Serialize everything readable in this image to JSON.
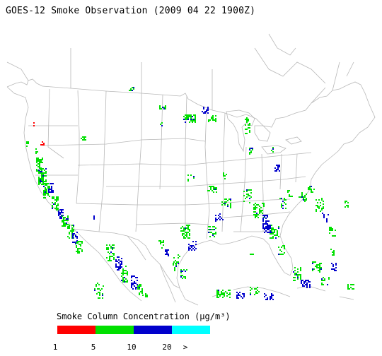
{
  "title": "GOES-12 Smoke Observation (2009 04 22  1900Z)",
  "legend": {
    "title": "Smoke Column Concentration (μg/m³)",
    "bins": [
      {
        "color": "#ff0000"
      },
      {
        "color": "#00e000"
      },
      {
        "color": "#0000cc"
      },
      {
        "color": "#00ffff"
      }
    ],
    "ticks": [
      "1",
      "5",
      "10",
      "20",
      ">"
    ]
  },
  "colors": {
    "boundary": "#b8b8b8",
    "smoke_low": "#ff0000",
    "smoke_mid": "#00e000",
    "smoke_high": "#0000cc",
    "smoke_max": "#00ffff"
  }
}
